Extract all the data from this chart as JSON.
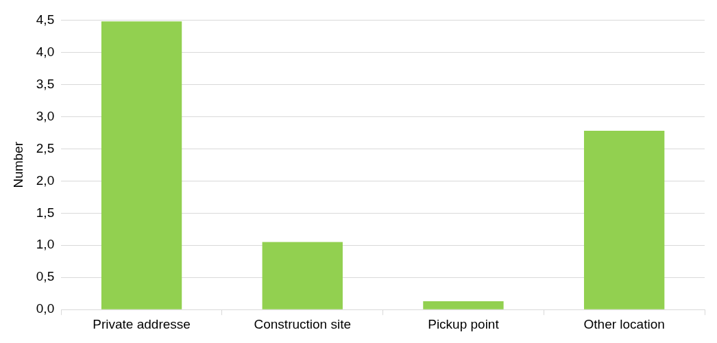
{
  "chart_data": {
    "type": "bar",
    "ylabel": "Number",
    "categories": [
      "Private addresse",
      "Construction site",
      "Pickup point",
      "Other location"
    ],
    "values": [
      4.48,
      1.05,
      0.13,
      2.78
    ],
    "color": "#92d050",
    "ylim": [
      0,
      4.5
    ],
    "yticks": [
      {
        "value": 0,
        "label": "0,0"
      },
      {
        "value": 0.5,
        "label": "0,5"
      },
      {
        "value": 1,
        "label": "1,0"
      },
      {
        "value": 1.5,
        "label": "1,5"
      },
      {
        "value": 2,
        "label": "2,0"
      },
      {
        "value": 2.5,
        "label": "2,5"
      },
      {
        "value": 3,
        "label": "3,0"
      },
      {
        "value": 3.5,
        "label": "3,5"
      },
      {
        "value": 4,
        "label": "4,0"
      },
      {
        "value": 4.5,
        "label": "4,5"
      }
    ],
    "grid": "y",
    "legend": false
  }
}
